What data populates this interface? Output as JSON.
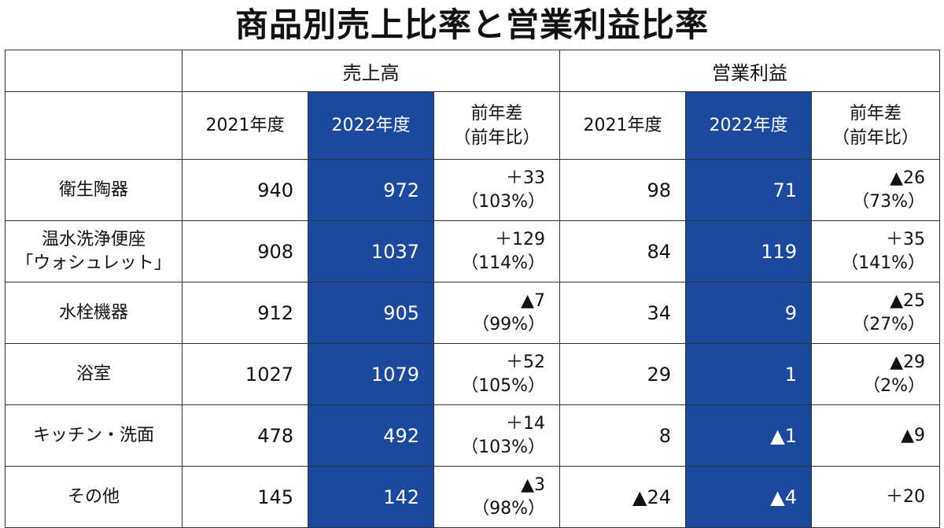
{
  "title": "商品別売上比率と営業利益比率",
  "colors": {
    "highlight": "#1b4a9c",
    "text": "#111111",
    "border": "#333333"
  },
  "groups": {
    "sales": "売上高",
    "profit": "営業利益"
  },
  "years": {
    "y2021": "2021年度",
    "y2022": "2022年度",
    "diff_line1": "前年差",
    "diff_line2": "（前年比）"
  },
  "chart_data": {
    "type": "table",
    "title": "商品別売上比率と営業利益比率",
    "columns": [
      "売上高 2021年度",
      "売上高 2022年度",
      "売上高 前年差（前年比）",
      "営業利益 2021年度",
      "営業利益 2022年度",
      "営業利益 前年差（前年比）"
    ],
    "rows": [
      {
        "cat1": "衛生陶器",
        "cat2": "",
        "s21": "940",
        "s22": "972",
        "sd": "＋33",
        "sr": "（103%）",
        "p21": "98",
        "p22": "71",
        "pd": "▲26",
        "pr": "（73%）"
      },
      {
        "cat1": "温水洗浄便座",
        "cat2": "「ウォシュレット」",
        "s21": "908",
        "s22": "1037",
        "sd": "＋129",
        "sr": "（114%）",
        "p21": "84",
        "p22": "119",
        "pd": "＋35",
        "pr": "（141%）"
      },
      {
        "cat1": "水栓機器",
        "cat2": "",
        "s21": "912",
        "s22": "905",
        "sd": "▲7",
        "sr": "（99%）",
        "p21": "34",
        "p22": "9",
        "pd": "▲25",
        "pr": "（27%）"
      },
      {
        "cat1": "浴室",
        "cat2": "",
        "s21": "1027",
        "s22": "1079",
        "sd": "＋52",
        "sr": "（105%）",
        "p21": "29",
        "p22": "1",
        "pd": "▲29",
        "pr": "（2%）"
      },
      {
        "cat1": "キッチン・洗面",
        "cat2": "",
        "s21": "478",
        "s22": "492",
        "sd": "＋14",
        "sr": "（103%）",
        "p21": "8",
        "p22": "▲1",
        "pd": "▲9",
        "pr": ""
      },
      {
        "cat1": "その他",
        "cat2": "",
        "s21": "145",
        "s22": "142",
        "sd": "▲3",
        "sr": "（98%）",
        "p21": "▲24",
        "p22": "▲4",
        "pd": "＋20",
        "pr": ""
      }
    ]
  }
}
